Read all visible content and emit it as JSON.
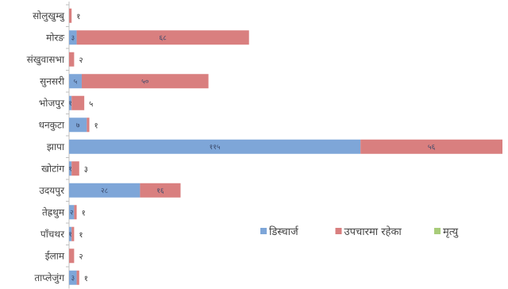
{
  "chart_data": {
    "type": "bar",
    "orientation": "horizontal",
    "stacked": true,
    "title": "",
    "xlabel": "",
    "ylabel": "",
    "categories": [
      "सोलुखुम्बु",
      "मोरङ",
      "संखुवासभा",
      "सुनसरी",
      "भोजपुर",
      "धनकुटा",
      "झापा",
      "खोटांग",
      "उदयपुर",
      "तेह्रथुम",
      "पाँचथर",
      "ईलाम",
      "ताप्लेजुंग"
    ],
    "series": [
      {
        "name": "डिस्चार्ज",
        "color": "#7ea6d8",
        "values": [
          0,
          3,
          0,
          5,
          1,
          7,
          115,
          1,
          28,
          2,
          1,
          0,
          3
        ],
        "labels": [
          "",
          "३",
          "",
          "५",
          "१",
          "७",
          "११५",
          "१",
          "२८",
          "२",
          "१",
          "",
          "३"
        ]
      },
      {
        "name": "उपचारमा रहेका",
        "color": "#d97f7f",
        "values": [
          1,
          68,
          2,
          50,
          5,
          1,
          56,
          3,
          16,
          1,
          1,
          2,
          1
        ],
        "labels": [
          "१",
          "६८",
          "२",
          "५०",
          "५",
          "१",
          "५६",
          "३",
          "१६",
          "१",
          "१",
          "२",
          "१"
        ]
      },
      {
        "name": "मृत्यु",
        "color": "#a8cc7a",
        "values": [
          0,
          0,
          0,
          0,
          0,
          0,
          0,
          0,
          0,
          0,
          0,
          0,
          0
        ],
        "labels": [
          "",
          "",
          "",
          "",
          "",
          "",
          "",
          "",
          "",
          "",
          "",
          "",
          ""
        ]
      }
    ],
    "legend": {
      "position": "bottom-right"
    },
    "grid": false
  }
}
